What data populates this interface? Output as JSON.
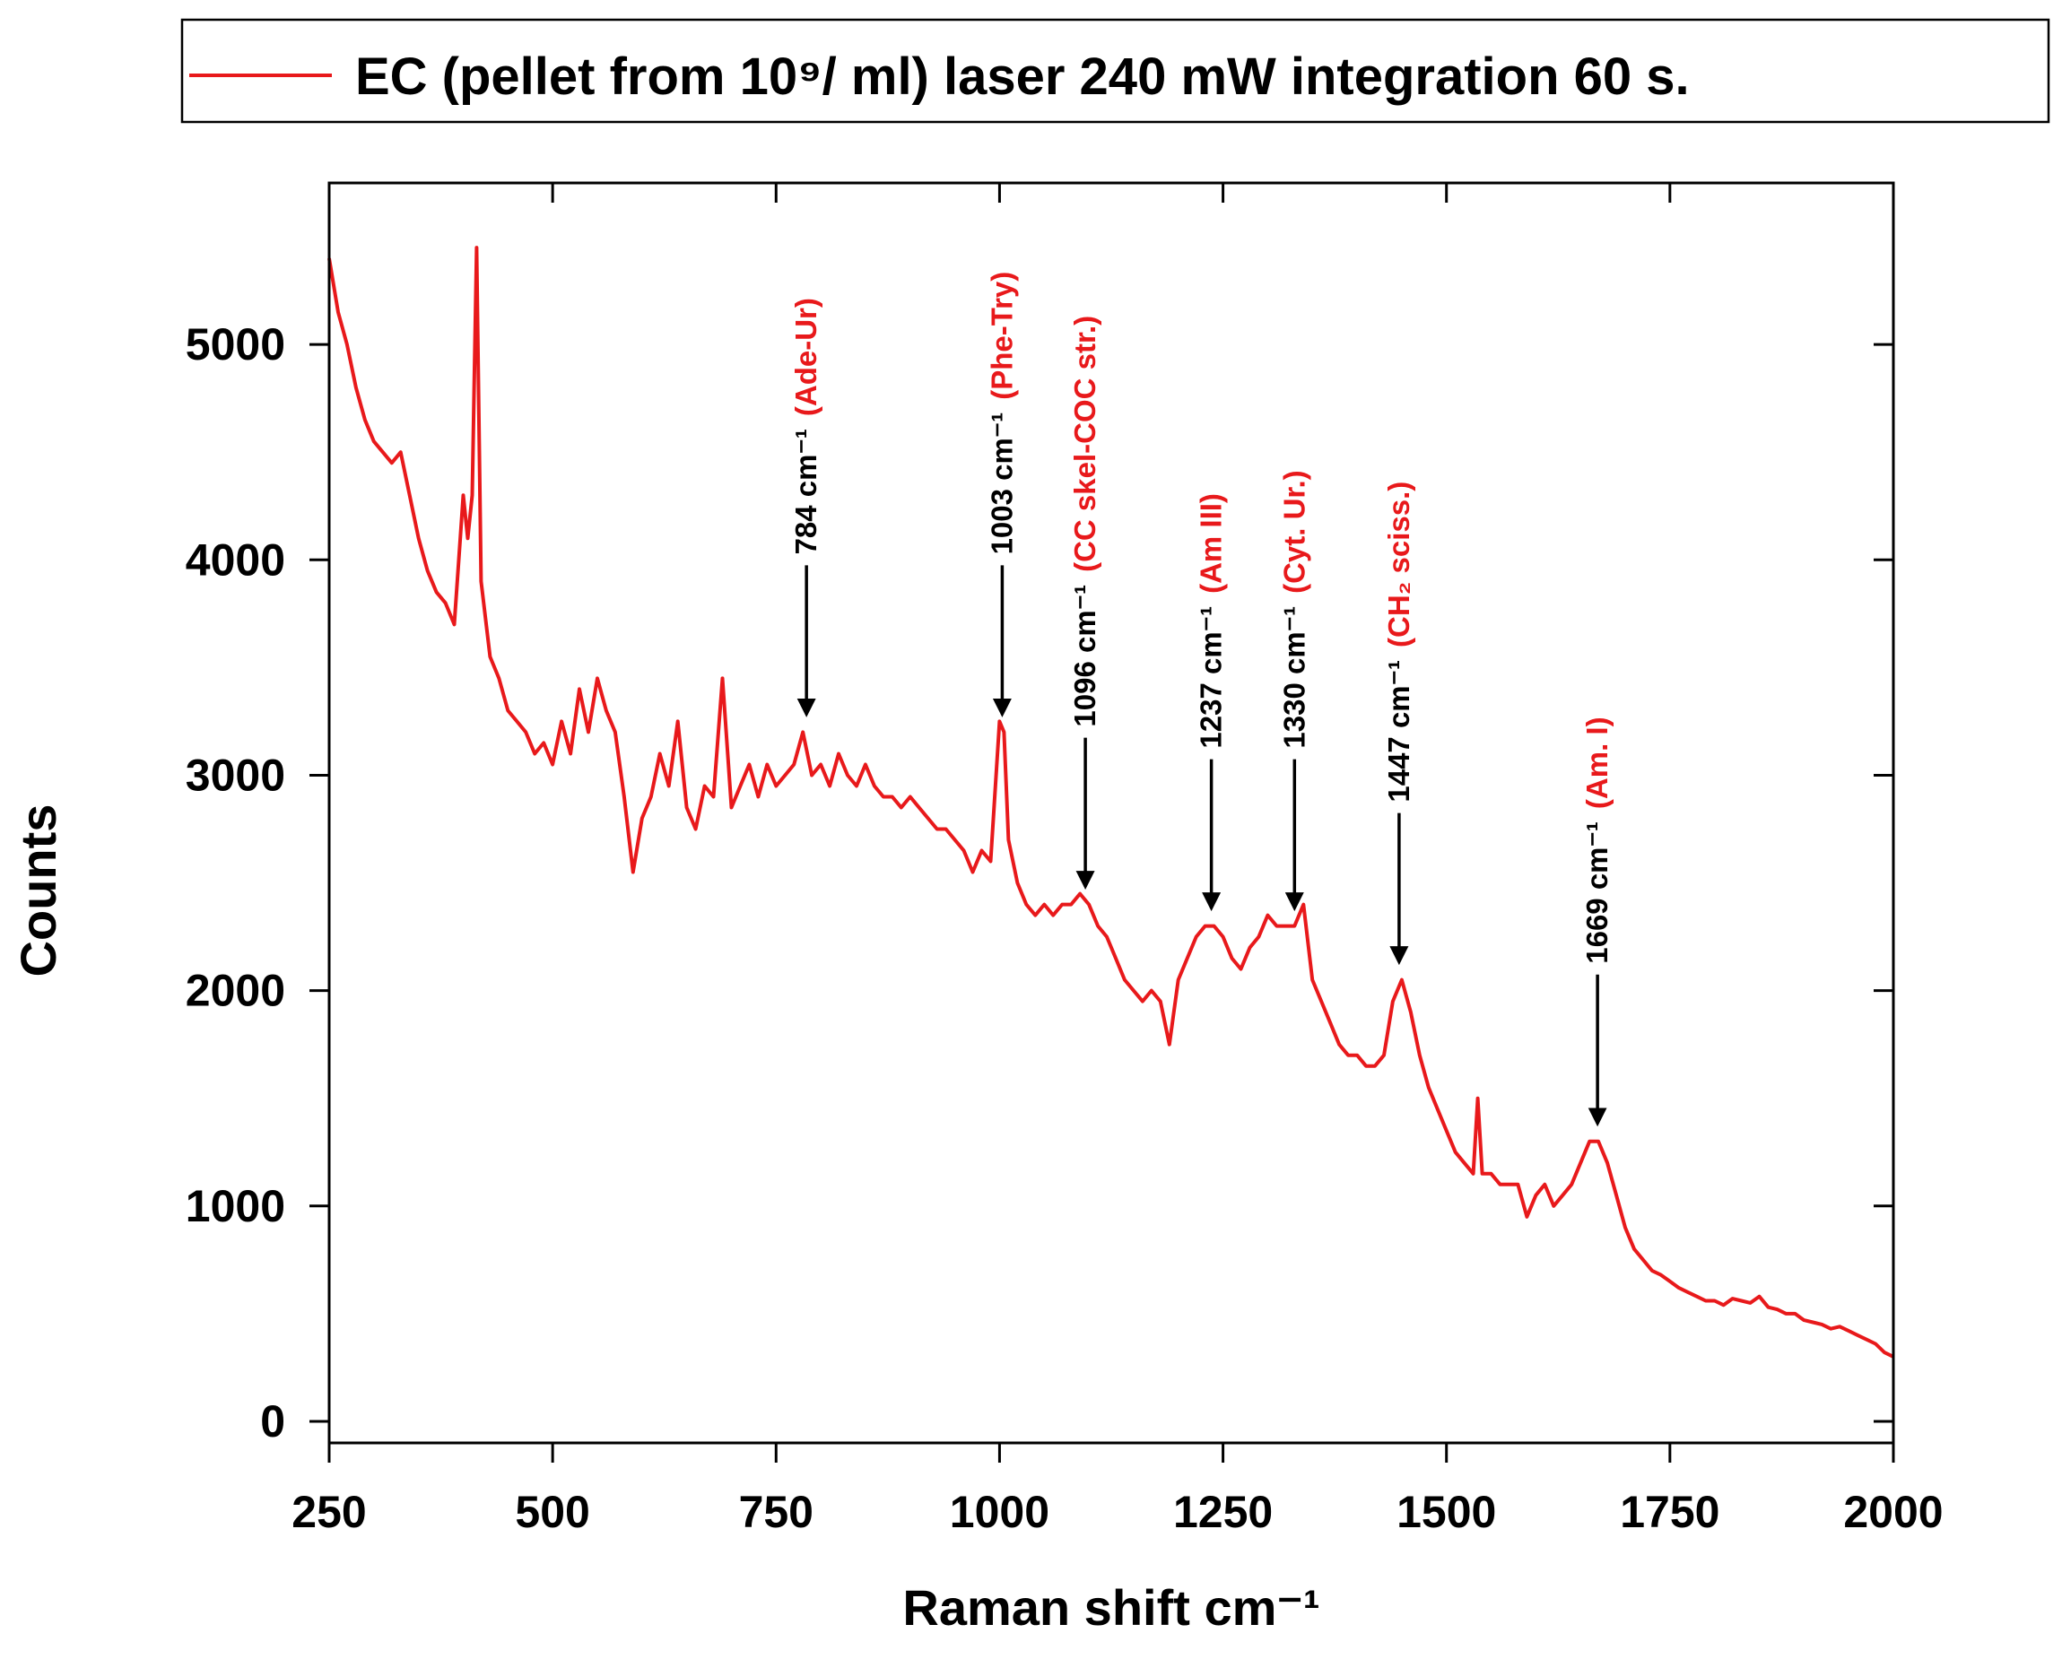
{
  "chart_data": {
    "type": "line",
    "x_label": "Raman shift cm⁻¹",
    "y_label": "Counts",
    "xlim": [
      250,
      2000
    ],
    "ylim": [
      -100,
      5750
    ],
    "xticks": [
      250,
      500,
      750,
      1000,
      1250,
      1500,
      1750,
      2000
    ],
    "yticks": [
      0,
      1000,
      2000,
      3000,
      4000,
      5000
    ],
    "legend": "top",
    "x": [
      250,
      260,
      270,
      280,
      290,
      300,
      310,
      320,
      330,
      340,
      350,
      360,
      370,
      380,
      390,
      400,
      405,
      410,
      415,
      420,
      430,
      440,
      450,
      460,
      470,
      480,
      490,
      500,
      510,
      520,
      530,
      540,
      550,
      560,
      570,
      580,
      590,
      600,
      610,
      620,
      630,
      640,
      650,
      660,
      670,
      680,
      690,
      700,
      710,
      720,
      730,
      740,
      750,
      760,
      770,
      780,
      790,
      800,
      810,
      820,
      830,
      840,
      850,
      860,
      870,
      880,
      890,
      900,
      910,
      920,
      930,
      940,
      950,
      960,
      970,
      980,
      990,
      1000,
      1005,
      1010,
      1020,
      1030,
      1040,
      1050,
      1060,
      1070,
      1080,
      1090,
      1100,
      1110,
      1120,
      1130,
      1140,
      1150,
      1160,
      1170,
      1180,
      1190,
      1200,
      1210,
      1220,
      1230,
      1240,
      1250,
      1260,
      1270,
      1280,
      1290,
      1300,
      1310,
      1320,
      1330,
      1340,
      1350,
      1360,
      1370,
      1380,
      1390,
      1400,
      1410,
      1420,
      1430,
      1440,
      1450,
      1460,
      1470,
      1480,
      1490,
      1500,
      1510,
      1520,
      1530,
      1535,
      1540,
      1550,
      1560,
      1570,
      1580,
      1590,
      1600,
      1610,
      1620,
      1630,
      1640,
      1650,
      1660,
      1670,
      1680,
      1690,
      1700,
      1710,
      1720,
      1730,
      1740,
      1750,
      1760,
      1770,
      1780,
      1790,
      1800,
      1810,
      1820,
      1830,
      1840,
      1850,
      1860,
      1870,
      1880,
      1890,
      1900,
      1910,
      1920,
      1930,
      1940,
      1950,
      1960,
      1970,
      1980,
      1990,
      2000
    ],
    "series": [
      {
        "name": "EC (pellet from 10⁹/ ml) laser 240 mW integration 60 s.",
        "color": "#e8191b",
        "values": [
          5400,
          5150,
          5000,
          4800,
          4650,
          4550,
          4500,
          4450,
          4500,
          4300,
          4100,
          3950,
          3850,
          3800,
          3700,
          4300,
          4100,
          4300,
          5450,
          3900,
          3550,
          3450,
          3300,
          3250,
          3200,
          3100,
          3150,
          3050,
          3250,
          3100,
          3400,
          3200,
          3450,
          3300,
          3200,
          2900,
          2550,
          2800,
          2900,
          3100,
          2950,
          3250,
          2850,
          2750,
          2950,
          2900,
          3450,
          2850,
          2950,
          3050,
          2900,
          3050,
          2950,
          3000,
          3050,
          3200,
          3000,
          3050,
          2950,
          3100,
          3000,
          2950,
          3050,
          2950,
          2900,
          2900,
          2850,
          2900,
          2850,
          2800,
          2750,
          2750,
          2700,
          2650,
          2550,
          2650,
          2600,
          3250,
          3200,
          2700,
          2500,
          2400,
          2350,
          2400,
          2350,
          2400,
          2400,
          2450,
          2400,
          2300,
          2250,
          2150,
          2050,
          2000,
          1950,
          2000,
          1950,
          1750,
          2050,
          2150,
          2250,
          2300,
          2300,
          2250,
          2150,
          2100,
          2200,
          2250,
          2350,
          2300,
          2300,
          2300,
          2400,
          2050,
          1950,
          1850,
          1750,
          1700,
          1700,
          1650,
          1650,
          1700,
          1950,
          2050,
          1900,
          1700,
          1550,
          1450,
          1350,
          1250,
          1200,
          1150,
          1500,
          1150,
          1150,
          1100,
          1100,
          1100,
          950,
          1050,
          1100,
          1000,
          1050,
          1100,
          1200,
          1300,
          1300,
          1200,
          1050,
          900,
          800,
          750,
          700,
          680,
          650,
          620,
          600,
          580,
          560,
          560,
          540,
          570,
          560,
          550,
          580,
          530,
          520,
          500,
          500,
          470,
          460,
          450,
          430,
          440,
          420,
          400,
          380,
          360,
          320,
          300
        ]
      }
    ],
    "annotations": [
      {
        "x": 784,
        "label": "784 cm⁻¹",
        "note": "(Ade-Ur)"
      },
      {
        "x": 1003,
        "label": "1003 cm⁻¹",
        "note": "(Phe-Try)"
      },
      {
        "x": 1096,
        "label": "1096 cm⁻¹",
        "note": "(CC skel-COC str.)"
      },
      {
        "x": 1237,
        "label": "1237 cm⁻¹",
        "note": "(Am III)"
      },
      {
        "x": 1330,
        "label": "1330 cm⁻¹",
        "note": "(Cyt. Ur.)"
      },
      {
        "x": 1447,
        "label": "1447 cm⁻¹",
        "note": "(CH₂ sciss.)"
      },
      {
        "x": 1669,
        "label": "1669 cm⁻¹",
        "note": "(Am. I)"
      }
    ]
  }
}
